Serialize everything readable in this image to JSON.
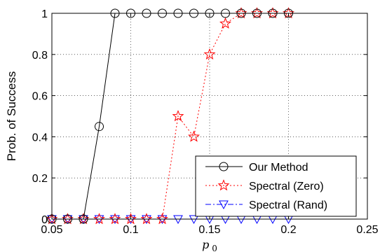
{
  "chart_data": {
    "type": "line",
    "xlabel": "p_0",
    "ylabel": "Prob. of Success",
    "xlim": [
      0.05,
      0.25
    ],
    "ylim": [
      0,
      1
    ],
    "xticks": [
      "0.05",
      "0.1",
      "0.15",
      "0.2",
      "0.25"
    ],
    "yticks": [
      "0",
      "0.2",
      "0.4",
      "0.6",
      "0.8",
      "1"
    ],
    "grid": true,
    "legend_position": "bottom-right",
    "x": [
      0.05,
      0.06,
      0.07,
      0.08,
      0.09,
      0.1,
      0.11,
      0.12,
      0.13,
      0.14,
      0.15,
      0.16,
      0.17,
      0.18,
      0.19,
      0.2
    ],
    "series": [
      {
        "name": "Our Method",
        "color": "#000000",
        "line_style": "solid",
        "marker": "circle",
        "values": [
          0,
          0,
          0,
          0.45,
          1,
          1,
          1,
          1,
          1,
          1,
          1,
          1,
          1,
          1,
          1,
          1
        ]
      },
      {
        "name": "Spectral (Zero)",
        "color": "#ff0000",
        "line_style": "dotted",
        "marker": "star",
        "values": [
          0,
          0,
          0,
          0,
          0,
          0,
          0,
          0,
          0.5,
          0.4,
          0.8,
          0.95,
          1,
          1,
          1,
          1
        ]
      },
      {
        "name": "Spectral (Rand)",
        "color": "#0000ff",
        "line_style": "dashdot",
        "marker": "triangle-down",
        "values": [
          0,
          0,
          0,
          0,
          0,
          0,
          0,
          0,
          0,
          0,
          0,
          0,
          0,
          0,
          0,
          0
        ]
      }
    ]
  }
}
